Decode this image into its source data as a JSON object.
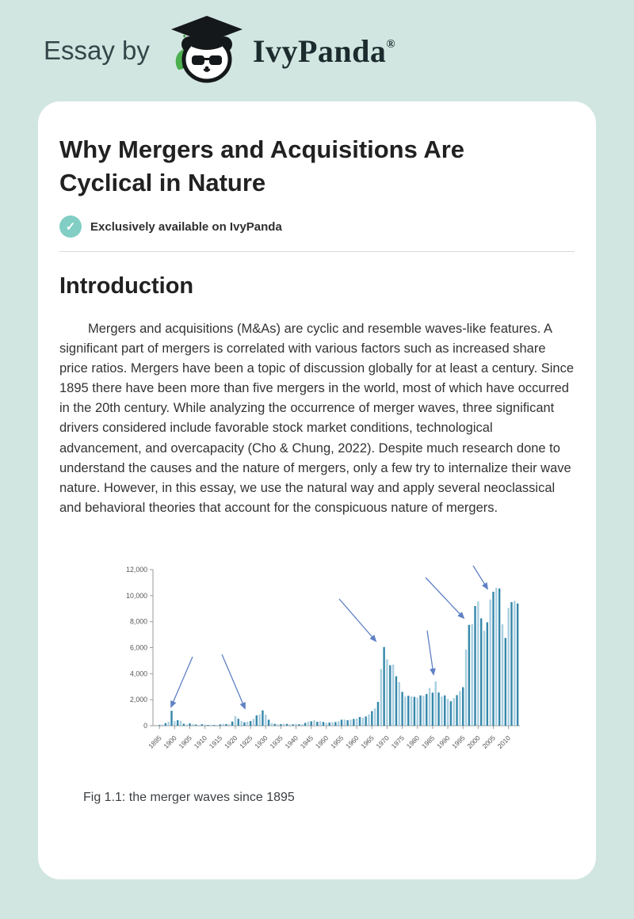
{
  "header": {
    "prefix": "Essay by",
    "brand": "IvyPanda",
    "registered": "®"
  },
  "article": {
    "title": "Why Mergers and Acquisitions Are Cyclical in Nature",
    "badge": {
      "check_glyph": "✓",
      "label": "Exclusively available on IvyPanda"
    },
    "section_heading": "Introduction",
    "paragraph": "Mergers and acquisitions (M&As) are cyclic and resemble waves-like features. A significant part of mergers is correlated with various factors such as increased share price ratios. Mergers have been a topic of discussion globally for at least a century. Since 1895 there have been more than five mergers in the world, most of which have occurred in the 20th century. While analyzing the occurrence of merger waves, three significant drivers considered include favorable stock market conditions, technological advancement, and overcapacity (Cho & Chung, 2022). Despite much research done to understand the causes and the nature of mergers, only a few try to internalize their wave nature. However, in this essay, we use the natural way and apply several neoclassical and behavioral theories that account for the conspicuous nature of mergers.",
    "figure_caption": "Fig 1.1: the merger waves since 1895"
  },
  "chart_data": {
    "type": "bar",
    "title": "",
    "xlabel": "",
    "ylabel": "",
    "start_year": 1895,
    "end_year": 2013,
    "ylim": [
      0,
      12000
    ],
    "grid": false,
    "legend": "none",
    "y_tick_labels": [
      "0",
      "2,000",
      "4,000",
      "6,000",
      "8,000",
      "10,000",
      "12,000"
    ],
    "x_tick_labels": [
      "1895",
      "1900",
      "1905",
      "1910",
      "1915",
      "1920",
      "1925",
      "1930",
      "1935",
      "1940",
      "1945",
      "1950",
      "1955",
      "1960",
      "1965",
      "1970",
      "1975",
      "1980",
      "1985",
      "1990",
      "1995",
      "2000",
      "2005",
      "2010"
    ],
    "values": [
      60,
      80,
      200,
      300,
      1150,
      350,
      420,
      380,
      150,
      100,
      180,
      110,
      90,
      60,
      110,
      90,
      60,
      70,
      60,
      60,
      100,
      140,
      130,
      110,
      320,
      740,
      530,
      360,
      260,
      310,
      360,
      530,
      790,
      860,
      1180,
      850,
      460,
      200,
      140,
      110,
      120,
      150,
      140,
      110,
      100,
      150,
      110,
      120,
      220,
      320,
      340,
      420,
      300,
      340,
      290,
      220,
      240,
      270,
      280,
      340,
      460,
      470,
      420,
      460,
      520,
      560,
      670,
      620,
      710,
      870,
      1120,
      1330,
      1830,
      4350,
      6050,
      5100,
      4650,
      4700,
      3800,
      3350,
      2600,
      2250,
      2300,
      2250,
      2220,
      2160,
      2330,
      2300,
      2440,
      2900,
      2540,
      3400,
      2550,
      2250,
      2330,
      2060,
      1880,
      2120,
      2350,
      2650,
      2960,
      5850,
      7750,
      7800,
      9200,
      9550,
      8250,
      7300,
      7950,
      9700,
      10300,
      10600,
      10550,
      7800,
      6750,
      9050,
      9500,
      9600,
      9400
    ],
    "bar_colors": [
      "#3587aa",
      "#a9cfe0"
    ],
    "axis_color": "#9a9a9a",
    "tick_label_color": "#555555",
    "arrow_color": "#5f80c4",
    "annotations": [
      {
        "target_year": 1899,
        "from": [
          108,
          133
        ],
        "to": [
          81,
          196
        ]
      },
      {
        "target_year": 1925,
        "from": [
          145,
          130
        ],
        "to": [
          174,
          198
        ]
      },
      {
        "target_year": 1969,
        "from": [
          293,
          60
        ],
        "to": [
          339,
          113
        ]
      },
      {
        "target_year": 1986,
        "from": [
          404,
          100
        ],
        "to": [
          412,
          155
        ]
      },
      {
        "target_year": 1997,
        "from": [
          402,
          33
        ],
        "to": [
          450,
          84
        ]
      },
      {
        "target_year": 2006,
        "from": [
          462,
          18
        ],
        "to": [
          480,
          47
        ]
      }
    ]
  }
}
